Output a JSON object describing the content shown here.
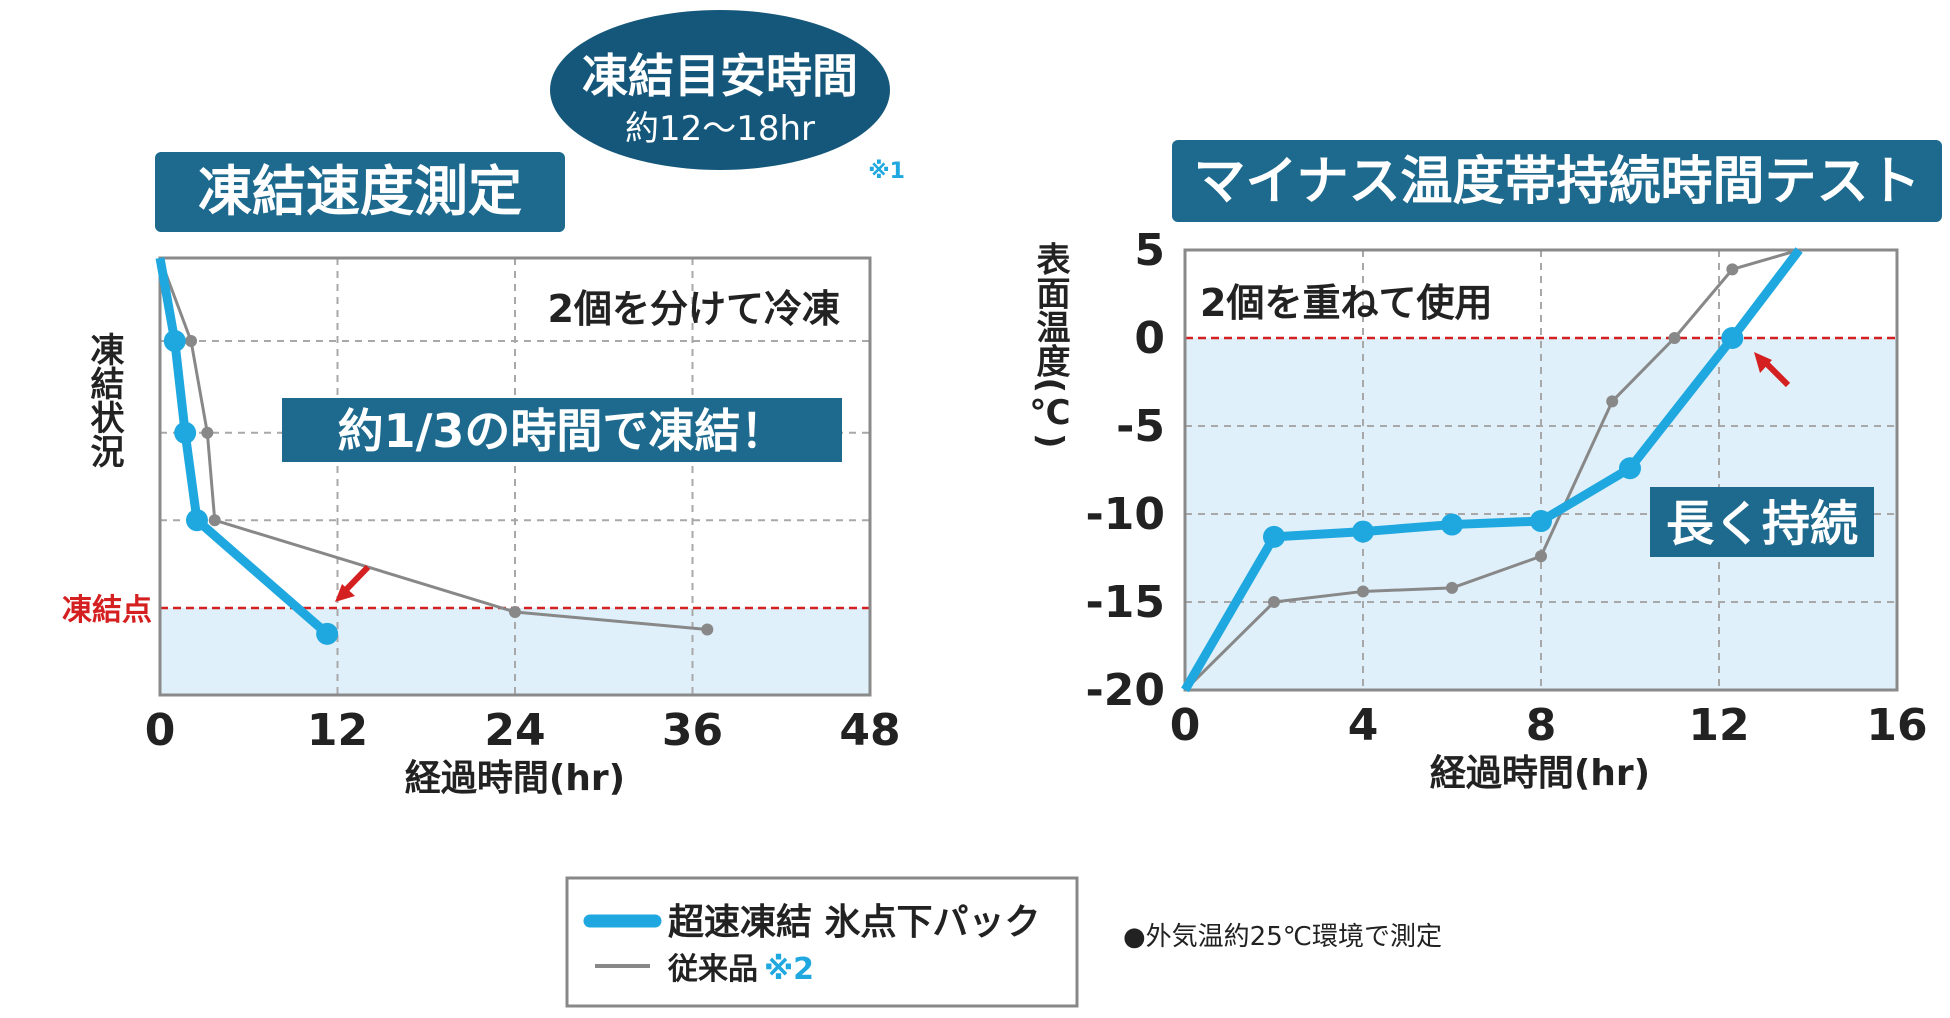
{
  "title_left": "凍結速度測定",
  "title_right": "マイナス温度帯持続時間テスト",
  "bubble": {
    "title": "凍結目安時間",
    "subtitle": "約12〜18hr"
  },
  "note_1": "※1",
  "note_env": "●外気温約25℃環境で測定",
  "legend": {
    "item_1": "超速凍結 氷点下パック",
    "item_2": "従来品",
    "item_2_note": "※2"
  },
  "colors": {
    "banner": "#1d6a8e",
    "bubble": "#15577a",
    "series_1": "#1fa8e0",
    "series_2": "#888888",
    "freeze_line": "#d42020",
    "fill": "#dff0fa",
    "grid": "#a8a8a8"
  },
  "chart_data": [
    {
      "type": "line",
      "title": "凍結速度測定",
      "xlabel": "経過時間(hr)",
      "ylabel": "凍結状況",
      "xlim": [
        0,
        48
      ],
      "xticks": [
        "0",
        "12",
        "24",
        "36",
        "48"
      ],
      "freeze_point_label": "凍結点",
      "annotation": "2個を分けて冷凍",
      "callout": "約1/3の時間で凍結！",
      "grid": true,
      "series": [
        {
          "name": "超速凍結 氷点下パック",
          "x": [
            0,
            1,
            1.7,
            2.5,
            11.3
          ],
          "y": [
            1.0,
            0.81,
            0.6,
            0.4,
            0.14
          ]
        },
        {
          "name": "従来品",
          "x": [
            0,
            2.1,
            3.2,
            3.7,
            24,
            37
          ],
          "y": [
            1.0,
            0.81,
            0.6,
            0.4,
            0.19,
            0.15
          ]
        }
      ]
    },
    {
      "type": "line",
      "title": "マイナス温度帯持続時間テスト",
      "xlabel": "経過時間(hr)",
      "ylabel": "表面温度(℃)",
      "xlim": [
        0,
        16
      ],
      "ylim": [
        -20,
        5
      ],
      "xticks": [
        "0",
        "4",
        "8",
        "12",
        "16"
      ],
      "yticks": [
        "5",
        "0",
        "-5",
        "-10",
        "-15",
        "-20"
      ],
      "annotation": "2個を重ねて使用",
      "callout": "長く持続",
      "grid": true,
      "series": [
        {
          "name": "超速凍結 氷点下パック",
          "x": [
            0,
            2,
            4,
            6,
            8,
            10,
            12.3,
            13.8
          ],
          "y": [
            -20,
            -11.3,
            -11.0,
            -10.6,
            -10.4,
            -7.4,
            0,
            5
          ]
        },
        {
          "name": "従来品",
          "x": [
            0,
            2,
            4,
            6,
            8,
            9.6,
            11,
            12.3,
            13.8
          ],
          "y": [
            -20,
            -15.0,
            -14.4,
            -14.2,
            -12.4,
            -3.6,
            0,
            3.9,
            5
          ]
        }
      ]
    }
  ]
}
